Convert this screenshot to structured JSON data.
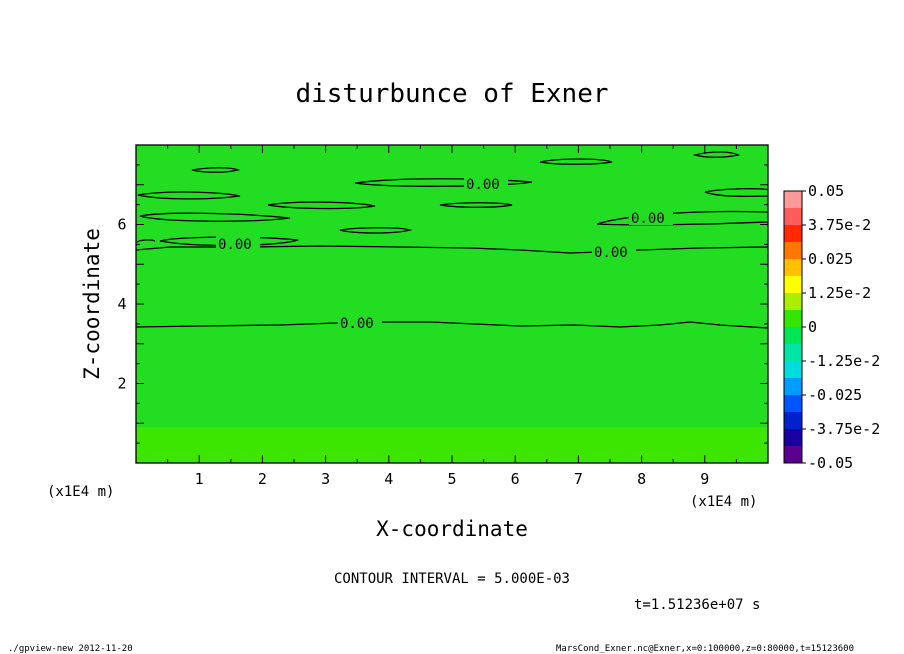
{
  "chart_data": {
    "type": "heatmap",
    "title": "disturbunce of Exner",
    "xlabel": "X-coordinate",
    "ylabel": "Z-coordinate",
    "x_unit": "(x1E4 m)",
    "x_unit_left": "(x1E4 m)",
    "xlim": [
      0,
      10
    ],
    "ylim": [
      0,
      8
    ],
    "x_ticks": [
      1,
      2,
      3,
      4,
      5,
      6,
      7,
      8,
      9
    ],
    "y_ticks": [
      2,
      4,
      6
    ],
    "contour_interval_text": "CONTOUR INTERVAL = 5.000E-03",
    "contour_label": "0.00",
    "time_text": "t=1.51236e+07 s",
    "footer_left": "./gpview-new  2012-11-20",
    "footer_right": "MarsCond_Exner.nc@Exner,x=0:100000,z=0:80000,t=15123600",
    "colorbar": {
      "labels": [
        "0.05",
        "3.75e-2",
        "0.025",
        "1.25e-2",
        "0",
        "-1.25e-2",
        "-0.025",
        "-3.75e-2",
        "-0.05"
      ],
      "colors": [
        "#ff9999",
        "#ff5c5c",
        "#ff2a00",
        "#ff7700",
        "#ffc000",
        "#ffff00",
        "#a8f000",
        "#33e600",
        "#00e655",
        "#00e6a8",
        "#00dddd",
        "#009dff",
        "#0055ff",
        "#0022cc",
        "#1a00a0",
        "#5a0090"
      ]
    },
    "field_regions": [
      {
        "z_range": [
          0,
          0.9
        ],
        "color": "#3ce600"
      },
      {
        "z_range": [
          0.9,
          8
        ],
        "color": "#22dd22"
      }
    ],
    "labeled_contours": [
      {
        "x": 3.7,
        "z": 3.45
      },
      {
        "x": 7.55,
        "z": 5.3
      },
      {
        "x": 1.6,
        "z": 5.5
      },
      {
        "x": 5.5,
        "z": 7.0
      },
      {
        "x": 8.15,
        "z": 6.2
      }
    ]
  }
}
